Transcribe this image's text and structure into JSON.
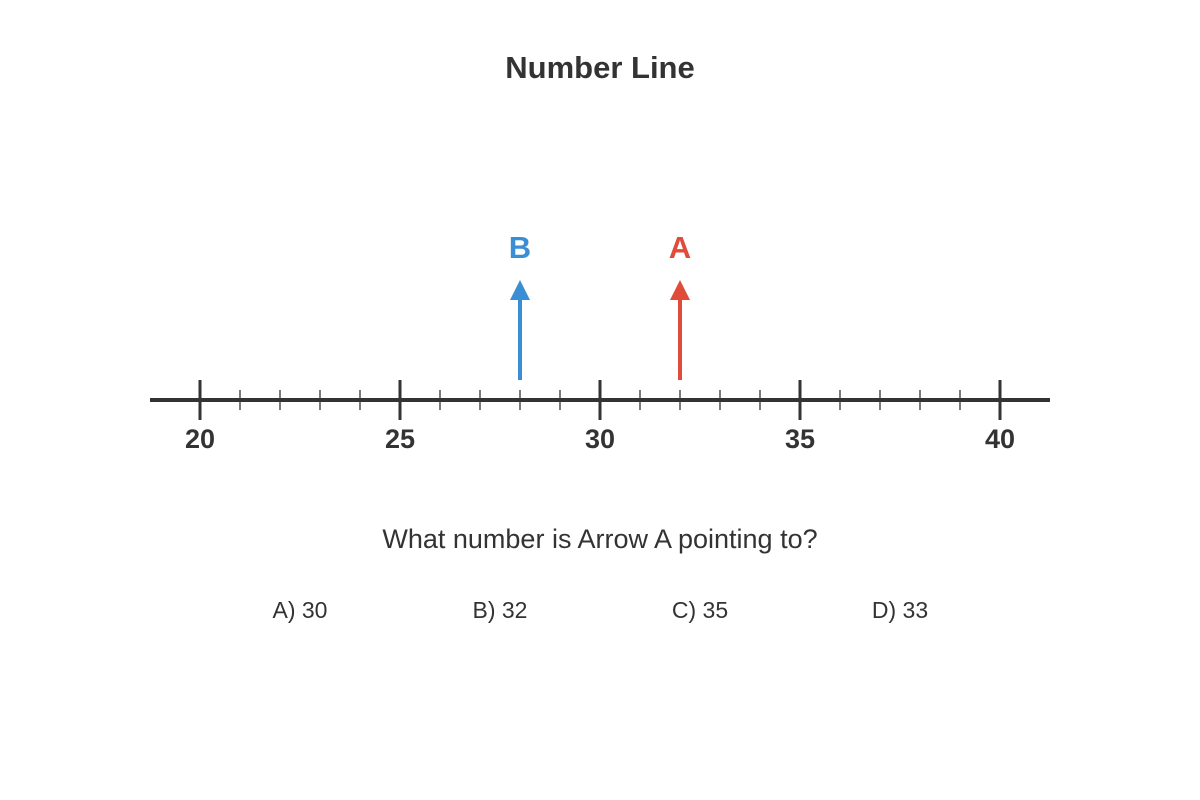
{
  "chart_data": {
    "type": "number_line",
    "title": "Number Line",
    "xlim": [
      18.75,
      41.25
    ],
    "xticks": [
      20,
      25,
      30,
      35,
      40
    ],
    "minor_xticks": [
      21,
      22,
      23,
      24,
      26,
      27,
      28,
      29,
      31,
      32,
      33,
      34,
      36,
      37,
      38,
      39
    ],
    "axis_color": "#333333",
    "series": [
      {
        "name": "B",
        "color": "#3a8fd4",
        "values": [
          28
        ]
      },
      {
        "name": "A",
        "color": "#e04b3a",
        "values": [
          32
        ]
      }
    ]
  },
  "question": {
    "text": "What number is Arrow A pointing to?",
    "options": [
      "A) 30",
      "B) 32",
      "C) 35",
      "D) 33"
    ]
  }
}
